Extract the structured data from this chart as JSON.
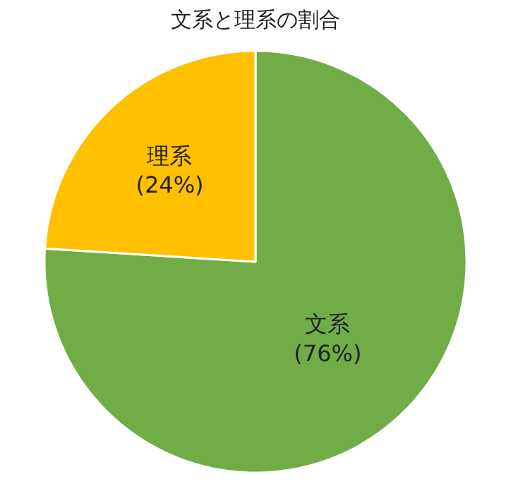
{
  "chart_data": {
    "type": "pie",
    "title": "文系と理系の割合",
    "categories": [
      "文系",
      "理系"
    ],
    "values": [
      76,
      24
    ],
    "colors": [
      "#70ad47",
      "#ffc000"
    ],
    "value_labels": [
      "(76%)",
      "(24%)"
    ],
    "legend": false
  }
}
